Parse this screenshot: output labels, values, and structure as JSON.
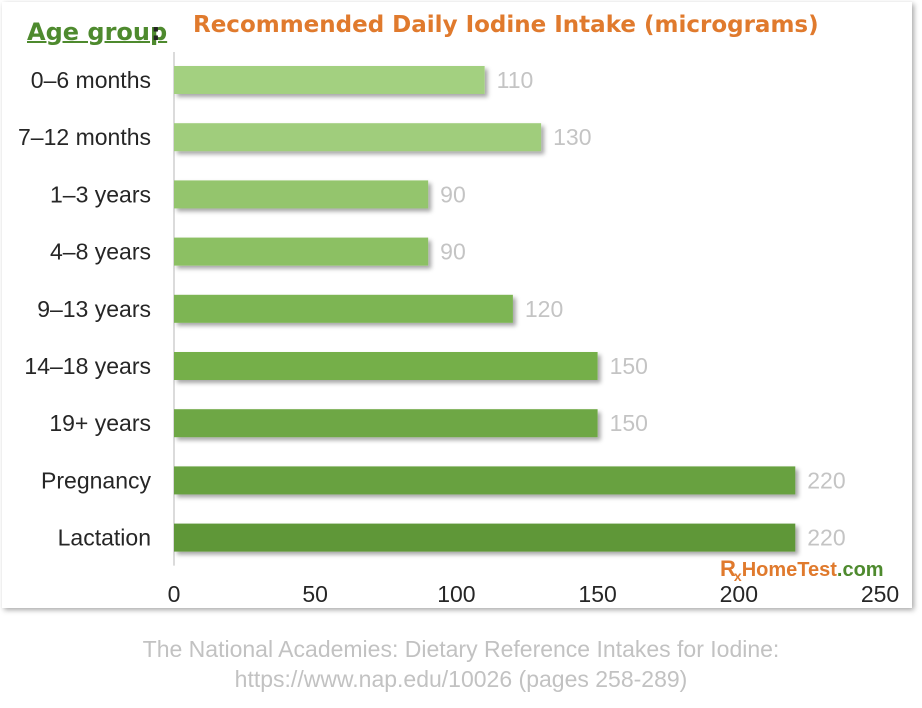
{
  "header": {
    "age_heading": "Age group",
    "colon": ":"
  },
  "chart_data": {
    "type": "bar",
    "orientation": "horizontal",
    "title": "Recommended Daily Iodine Intake (micrograms)",
    "categories": [
      "0–6 months",
      "7–12 months",
      "1–3 years",
      "4–8 years",
      "9–13 years",
      "14–18 years",
      "19+ years",
      "Pregnancy",
      "Lactation"
    ],
    "values": [
      110,
      130,
      90,
      90,
      120,
      150,
      150,
      220,
      220
    ],
    "xlim": [
      0,
      250
    ],
    "xticks": [
      0,
      50,
      100,
      150,
      200,
      250
    ],
    "grid": false,
    "data_labels": true,
    "colors": [
      "#a3d080",
      "#a0cd7c",
      "#94c56d",
      "#8cc063",
      "#7db553",
      "#75af4a",
      "#6ea744",
      "#67a13f",
      "#5e9739"
    ]
  },
  "branding": {
    "rx_r": "R",
    "rx_x": "x",
    "name": "HomeTest",
    "domain": ".com"
  },
  "caption": {
    "line1": "The National Academies: Dietary Reference Intakes for Iodine:",
    "line2": "https://www.nap.edu/10026 (pages 258-289)"
  }
}
